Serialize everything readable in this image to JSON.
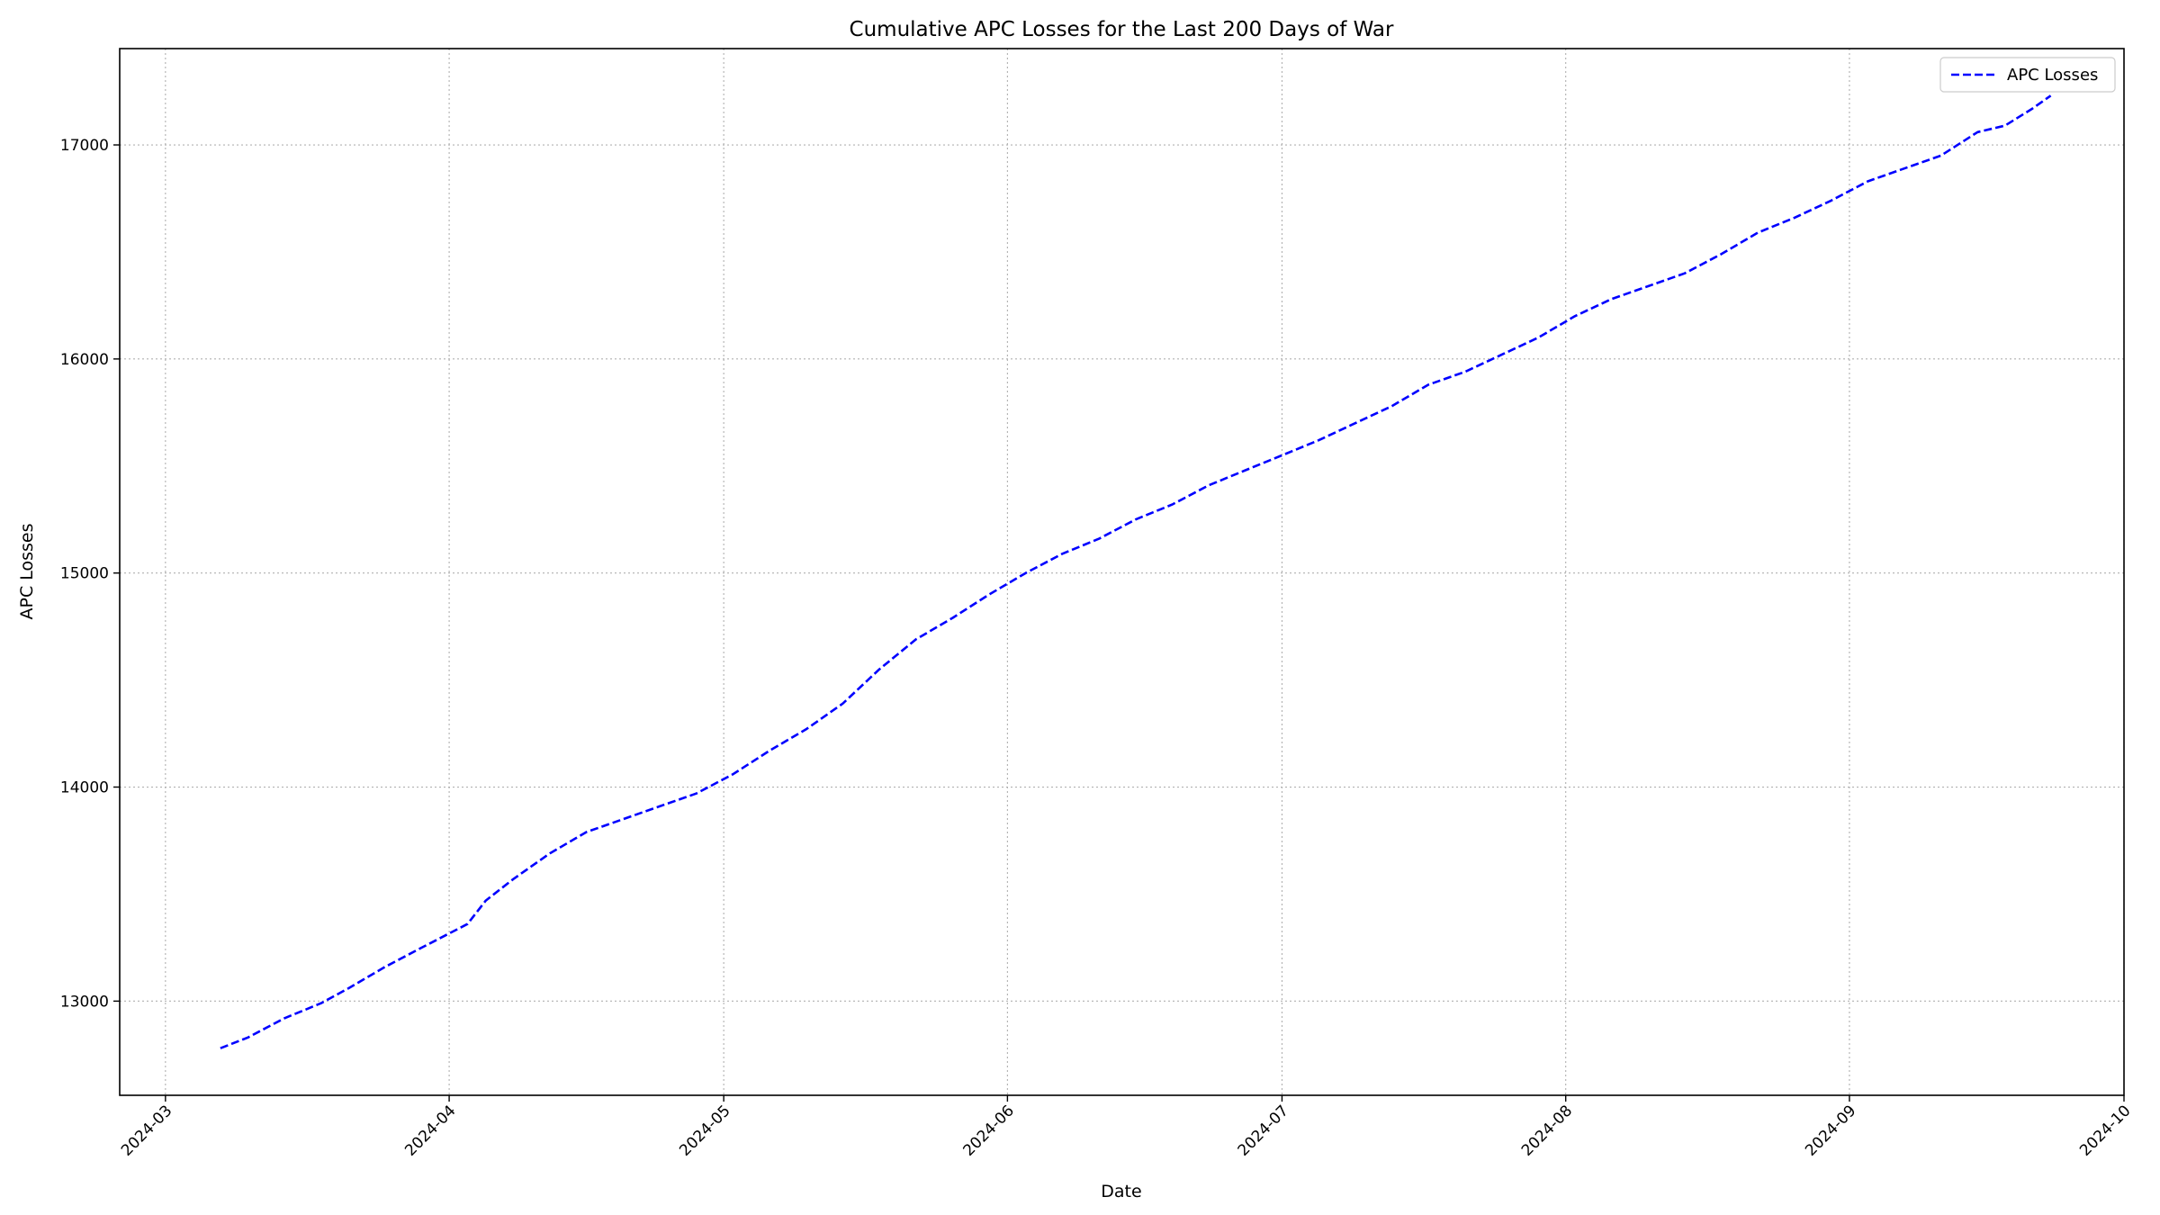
{
  "chart_data": {
    "type": "line",
    "title": "Cumulative APC Losses for the Last 200 Days of War",
    "xlabel": "Date",
    "ylabel": "APC Losses",
    "x_axis_type": "date",
    "xlim": [
      "2024-02-25",
      "2024-10-01"
    ],
    "ylim": [
      12560,
      17450
    ],
    "x_ticks": [
      "2024-03",
      "2024-04",
      "2024-05",
      "2024-06",
      "2024-07",
      "2024-08",
      "2024-09",
      "2024-10"
    ],
    "x_tick_dates": [
      "2024-03-01",
      "2024-04-01",
      "2024-05-01",
      "2024-06-01",
      "2024-07-01",
      "2024-08-01",
      "2024-09-01",
      "2024-10-01"
    ],
    "y_ticks": [
      "13000",
      "14000",
      "15000",
      "16000",
      "17000"
    ],
    "y_tick_values": [
      13000,
      14000,
      15000,
      16000,
      17000
    ],
    "grid": true,
    "legend": {
      "position": "top-right",
      "entries": [
        "APC Losses"
      ]
    },
    "series": [
      {
        "name": "APC Losses",
        "color": "#0000ff",
        "line_style": "dashed",
        "x": [
          "2024-03-07",
          "2024-03-10",
          "2024-03-14",
          "2024-03-18",
          "2024-03-21",
          "2024-03-25",
          "2024-03-29",
          "2024-04-03",
          "2024-04-05",
          "2024-04-08",
          "2024-04-12",
          "2024-04-16",
          "2024-04-20",
          "2024-04-24",
          "2024-04-28",
          "2024-05-02",
          "2024-05-06",
          "2024-05-10",
          "2024-05-14",
          "2024-05-18",
          "2024-05-22",
          "2024-05-26",
          "2024-05-30",
          "2024-06-03",
          "2024-06-07",
          "2024-06-11",
          "2024-06-15",
          "2024-06-19",
          "2024-06-23",
          "2024-06-27",
          "2024-07-01",
          "2024-07-05",
          "2024-07-09",
          "2024-07-13",
          "2024-07-17",
          "2024-07-21",
          "2024-07-25",
          "2024-07-29",
          "2024-08-02",
          "2024-08-06",
          "2024-08-10",
          "2024-08-14",
          "2024-08-18",
          "2024-08-22",
          "2024-08-26",
          "2024-08-30",
          "2024-09-03",
          "2024-09-07",
          "2024-09-11",
          "2024-09-15",
          "2024-09-18",
          "2024-09-21",
          "2024-09-23"
        ],
        "y": [
          12780,
          12830,
          12920,
          12990,
          13060,
          13160,
          13250,
          13360,
          13470,
          13570,
          13690,
          13790,
          13850,
          13910,
          13970,
          14060,
          14170,
          14270,
          14390,
          14550,
          14690,
          14790,
          14900,
          15000,
          15090,
          15160,
          15250,
          15320,
          15410,
          15480,
          15550,
          15620,
          15700,
          15780,
          15880,
          15940,
          16020,
          16100,
          16200,
          16280,
          16340,
          16400,
          16490,
          16590,
          16660,
          16740,
          16830,
          16890,
          16950,
          17060,
          17090,
          17170,
          17230
        ]
      }
    ]
  }
}
